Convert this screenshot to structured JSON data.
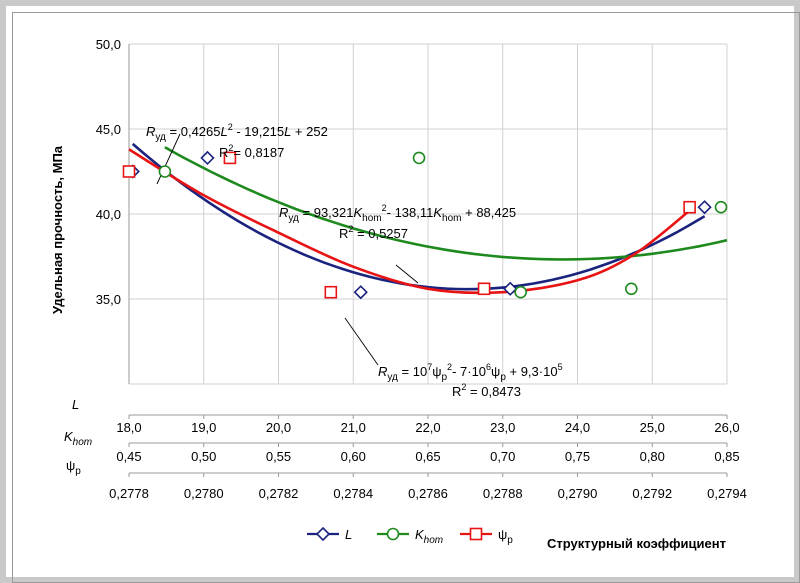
{
  "chart_data": {
    "type": "scatter",
    "ylabel": "Удельная прочность, МПа",
    "xlabel": "Структурный коэффициент",
    "ylim": [
      30,
      50
    ],
    "yticks": [
      "50,0",
      "45,0",
      "40,0",
      "35,0"
    ],
    "grid": true,
    "legend_position": "bottom",
    "axes": [
      {
        "key": "L",
        "name": "L",
        "range": [
          18,
          26
        ],
        "ticks": [
          "18,0",
          "19,0",
          "20,0",
          "21,0",
          "22,0",
          "23,0",
          "24,0",
          "25,0",
          "26,0"
        ]
      },
      {
        "key": "K",
        "name": "K",
        "sub": "hom",
        "range": [
          0.45,
          0.85
        ],
        "ticks": [
          "0,45",
          "0,50",
          "0,55",
          "0,60",
          "0,65",
          "0,70",
          "0,75",
          "0,80",
          "0,85"
        ]
      },
      {
        "key": "P",
        "name": "ψ",
        "sub": "р",
        "range": [
          0.2778,
          0.2794
        ],
        "ticks": [
          "0,2778",
          "0,2780",
          "0,2782",
          "0,2784",
          "0,2786",
          "0,2788",
          "0,2790",
          "0,2792",
          "0,2794"
        ]
      }
    ],
    "series": [
      {
        "name": "L",
        "axis": "L",
        "color": "#1a237e",
        "marker": "diamond",
        "points": [
          [
            18.05,
            42.5
          ],
          [
            19.05,
            43.3
          ],
          [
            21.1,
            35.4
          ],
          [
            23.1,
            35.6
          ],
          [
            25.7,
            40.4
          ]
        ],
        "fit": [
          0.4265,
          -19.215,
          252
        ],
        "fit_range": [
          18.05,
          25.7
        ]
      },
      {
        "name": "K",
        "axis": "K",
        "color": "#1e8a1e",
        "marker": "circle",
        "points": [
          [
            0.474,
            42.5
          ],
          [
            0.644,
            43.3
          ],
          [
            0.712,
            35.4
          ],
          [
            0.786,
            35.6
          ],
          [
            0.846,
            40.4
          ]
        ],
        "fit": [
          93.321,
          -138.11,
          88.425
        ],
        "fit_range": [
          0.474,
          0.85
        ]
      },
      {
        "name": "ψр",
        "axis": "P",
        "color": "#e81414",
        "marker": "square",
        "points": [
          [
            0.2778,
            42.5
          ],
          [
            0.27807,
            43.3
          ],
          [
            0.27834,
            35.4
          ],
          [
            0.27875,
            35.6
          ],
          [
            0.2793,
            40.4
          ]
        ],
        "fit_range": [
          0.2778,
          0.2793
        ],
        "fit_display": [
          [
            0.2778,
            43.8
          ],
          [
            0.278,
            41.1
          ],
          [
            0.2782,
            38.9
          ],
          [
            0.2784,
            36.9
          ],
          [
            0.2786,
            35.6
          ],
          [
            0.2788,
            35.4
          ],
          [
            0.279,
            36.1
          ],
          [
            0.27915,
            37.6
          ],
          [
            0.2793,
            40.2
          ]
        ]
      }
    ],
    "annotations": [
      {
        "id": "L",
        "lhs_main": "R",
        "lhs_sub": "уд",
        "eq1": " = 0,4265",
        "var": "L",
        "sup": "2",
        "eq2": " - 19,215",
        "var2": "L",
        "eq3": " + 252",
        "r2_label": "R",
        "r2_sup": "2",
        "r2_value": "= 0,8187"
      },
      {
        "id": "K",
        "lhs_main": "R",
        "lhs_sub": "уд",
        "eq1": " = 93,321",
        "var": "K",
        "var_sub": "hom",
        "sup": "2",
        "eq2": "- 138,11",
        "var2": "K",
        "var2_sub": "hom",
        "eq3": " + 88,425",
        "r2_label": "R",
        "r2_sup": "2",
        "r2_value": " = 0,5257"
      },
      {
        "id": "P",
        "lhs_main": "R",
        "lhs_sub": "уд",
        "eq1": " = 10",
        "e1": "7",
        "psi1": "ψ",
        "psi1_sub": "р",
        "sup": "2",
        "eq2": "- 7·10",
        "e2": "6",
        "psi2": "ψ",
        "psi2_sub": "р",
        "eq3": " + 9,3·10",
        "e3": "5",
        "r2_label": "R",
        "r2_sup": "2",
        "r2_value": " = 0,8473"
      }
    ]
  }
}
